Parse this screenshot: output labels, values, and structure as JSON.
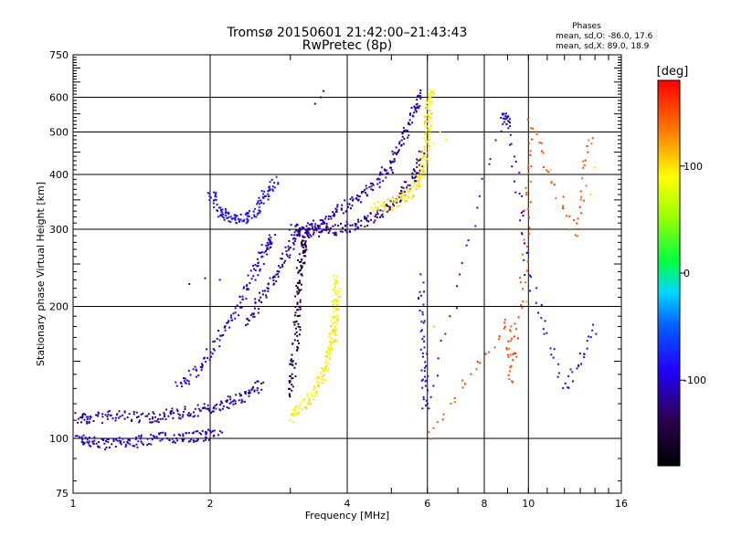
{
  "chart_data": {
    "type": "scatter",
    "title": "Tromsø 20150601 21:42:00–21:43:43",
    "subtitle": "RwPretec (8p)",
    "xlabel": "Frequency [MHz]",
    "ylabel": "Stationary phase Virtual Height [km]",
    "x_scale": "log",
    "y_scale": "log",
    "xlim": [
      1,
      16
    ],
    "ylim": [
      75,
      750
    ],
    "x_ticks": [
      1,
      2,
      4,
      6,
      8,
      10,
      16
    ],
    "y_ticks": [
      75,
      100,
      200,
      300,
      400,
      500,
      600,
      750
    ],
    "grid": true,
    "phases_box": {
      "title": "Phases",
      "line_o": "mean, sd,O:  -86.0, 17.6",
      "line_x": "mean, sd,X:  89.0, 18.9"
    },
    "colorbar": {
      "label": "[deg]",
      "range": [
        -180,
        180
      ],
      "ticks": [
        100,
        0,
        -100
      ],
      "tick_labels": [
        "100",
        "0",
        "-100"
      ],
      "colormap": "rainbow"
    },
    "traces": [
      {
        "phase": -105,
        "points": [
          [
            1.02,
            100
          ],
          [
            1.1,
            98
          ],
          [
            1.2,
            97
          ],
          [
            1.35,
            98
          ],
          [
            1.5,
            100
          ],
          [
            1.7,
            101
          ],
          [
            1.9,
            101
          ],
          [
            2.1,
            102
          ]
        ]
      },
      {
        "phase": -110,
        "points": [
          [
            1.02,
            112
          ],
          [
            1.1,
            111
          ],
          [
            1.25,
            113
          ],
          [
            1.45,
            111
          ],
          [
            1.6,
            113
          ],
          [
            1.8,
            115
          ],
          [
            2.0,
            117
          ],
          [
            2.2,
            121
          ],
          [
            2.4,
            126
          ],
          [
            2.6,
            133
          ]
        ]
      },
      {
        "phase": -100,
        "points": [
          [
            1.7,
            130
          ],
          [
            1.9,
            145
          ],
          [
            2.1,
            170
          ],
          [
            2.3,
            200
          ],
          [
            2.5,
            240
          ],
          [
            2.65,
            270
          ],
          [
            2.75,
            290
          ]
        ]
      },
      {
        "phase": -95,
        "points": [
          [
            1.8,
            225
          ],
          [
            1.95,
            232
          ],
          [
            2.1,
            230
          ]
        ]
      },
      {
        "phase": -85,
        "points": [
          [
            2.0,
            365
          ],
          [
            2.1,
            330
          ],
          [
            2.2,
            318
          ],
          [
            2.35,
            315
          ],
          [
            2.5,
            330
          ],
          [
            2.65,
            360
          ],
          [
            2.8,
            385
          ]
        ]
      },
      {
        "phase": -110,
        "points": [
          [
            2.4,
            180
          ],
          [
            2.6,
            210
          ],
          [
            2.8,
            240
          ],
          [
            3.0,
            275
          ],
          [
            3.2,
            300
          ],
          [
            3.5,
            310
          ],
          [
            3.8,
            330
          ],
          [
            4.2,
            350
          ],
          [
            4.6,
            380
          ],
          [
            5.0,
            420
          ],
          [
            5.3,
            480
          ],
          [
            5.6,
            550
          ],
          [
            5.8,
            610
          ]
        ]
      },
      {
        "phase": -120,
        "points": [
          [
            3.0,
            300
          ],
          [
            3.3,
            297
          ],
          [
            3.6,
            298
          ],
          [
            4.0,
            303
          ],
          [
            4.4,
            312
          ],
          [
            4.8,
            330
          ],
          [
            5.2,
            355
          ],
          [
            5.6,
            395
          ],
          [
            5.85,
            450
          ]
        ]
      },
      {
        "phase": -145,
        "points": [
          [
            3.0,
            125
          ],
          [
            3.05,
            150
          ],
          [
            3.1,
            180
          ],
          [
            3.12,
            210
          ],
          [
            3.15,
            240
          ],
          [
            3.2,
            270
          ],
          [
            3.25,
            290
          ]
        ]
      },
      {
        "phase": -135,
        "points": [
          [
            3.4,
            580
          ],
          [
            3.5,
            600
          ],
          [
            3.55,
            620
          ]
        ]
      },
      {
        "phase": 92,
        "points": [
          [
            3.0,
            112
          ],
          [
            3.2,
            118
          ],
          [
            3.4,
            128
          ],
          [
            3.55,
            140
          ],
          [
            3.65,
            155
          ],
          [
            3.72,
            170
          ],
          [
            3.75,
            185
          ],
          [
            3.78,
            210
          ],
          [
            3.8,
            235
          ]
        ]
      },
      {
        "phase": 95,
        "points": [
          [
            4.6,
            335
          ],
          [
            5.0,
            342
          ],
          [
            5.4,
            355
          ],
          [
            5.7,
            380
          ],
          [
            5.85,
            410
          ],
          [
            5.95,
            460
          ],
          [
            6.0,
            520
          ],
          [
            6.05,
            580
          ],
          [
            6.1,
            625
          ]
        ]
      },
      {
        "phase": 85,
        "points": [
          [
            6.2,
            470
          ],
          [
            6.4,
            500
          ],
          [
            6.6,
            480
          ]
        ]
      },
      {
        "phase": -90,
        "points": [
          [
            5.8,
            230
          ],
          [
            5.9,
            155
          ],
          [
            5.95,
            115
          ],
          [
            8.8,
            550
          ],
          [
            9.1,
            520
          ],
          [
            9.9,
            250
          ],
          [
            12.0,
            130
          ],
          [
            14.2,
            180
          ]
        ]
      },
      {
        "phase": 150,
        "points": [
          [
            6.0,
            100
          ],
          [
            9.0,
            185
          ],
          [
            9.2,
            135
          ],
          [
            9.9,
            280
          ],
          [
            10.1,
            525
          ],
          [
            12.6,
            290
          ],
          [
            13.8,
            510
          ]
        ]
      },
      {
        "phase": 100,
        "points": [
          [
            11.2,
            410
          ],
          [
            13.7,
            360
          ],
          [
            14.0,
            415
          ]
        ]
      },
      {
        "phase": 45,
        "points": [
          [
            6.2,
            180
          ],
          [
            9.9,
            205
          ]
        ]
      }
    ]
  }
}
